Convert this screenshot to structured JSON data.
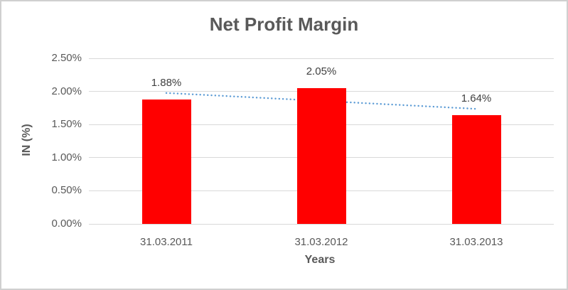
{
  "chart_data": {
    "type": "bar",
    "title": "Net Profit Margin",
    "xlabel": "Years",
    "ylabel": "IN (%)",
    "categories": [
      "31.03.2011",
      "31.03.2012",
      "31.03.2013"
    ],
    "values": [
      1.88,
      2.05,
      1.64
    ],
    "data_labels": [
      "1.88%",
      "2.05%",
      "1.64%"
    ],
    "ylim": [
      0,
      2.5
    ],
    "yticks": [
      {
        "value": 0.0,
        "label": "0.00%"
      },
      {
        "value": 0.5,
        "label": "0.50%"
      },
      {
        "value": 1.0,
        "label": "1.00%"
      },
      {
        "value": 1.5,
        "label": "1.50%"
      },
      {
        "value": 2.0,
        "label": "2.00%"
      },
      {
        "value": 2.5,
        "label": "2.50%"
      }
    ],
    "grid": true,
    "legend": "none",
    "trendline": {
      "type": "linear",
      "style": "dotted"
    },
    "colors": {
      "bar": "#ff0000",
      "trendline": "#5b9bd5",
      "gridline": "#d9d9d9",
      "title_text": "#595959",
      "axis_text": "#595959",
      "data_label_text": "#404040",
      "border": "#d0d0d0",
      "background": "#ffffff"
    }
  }
}
